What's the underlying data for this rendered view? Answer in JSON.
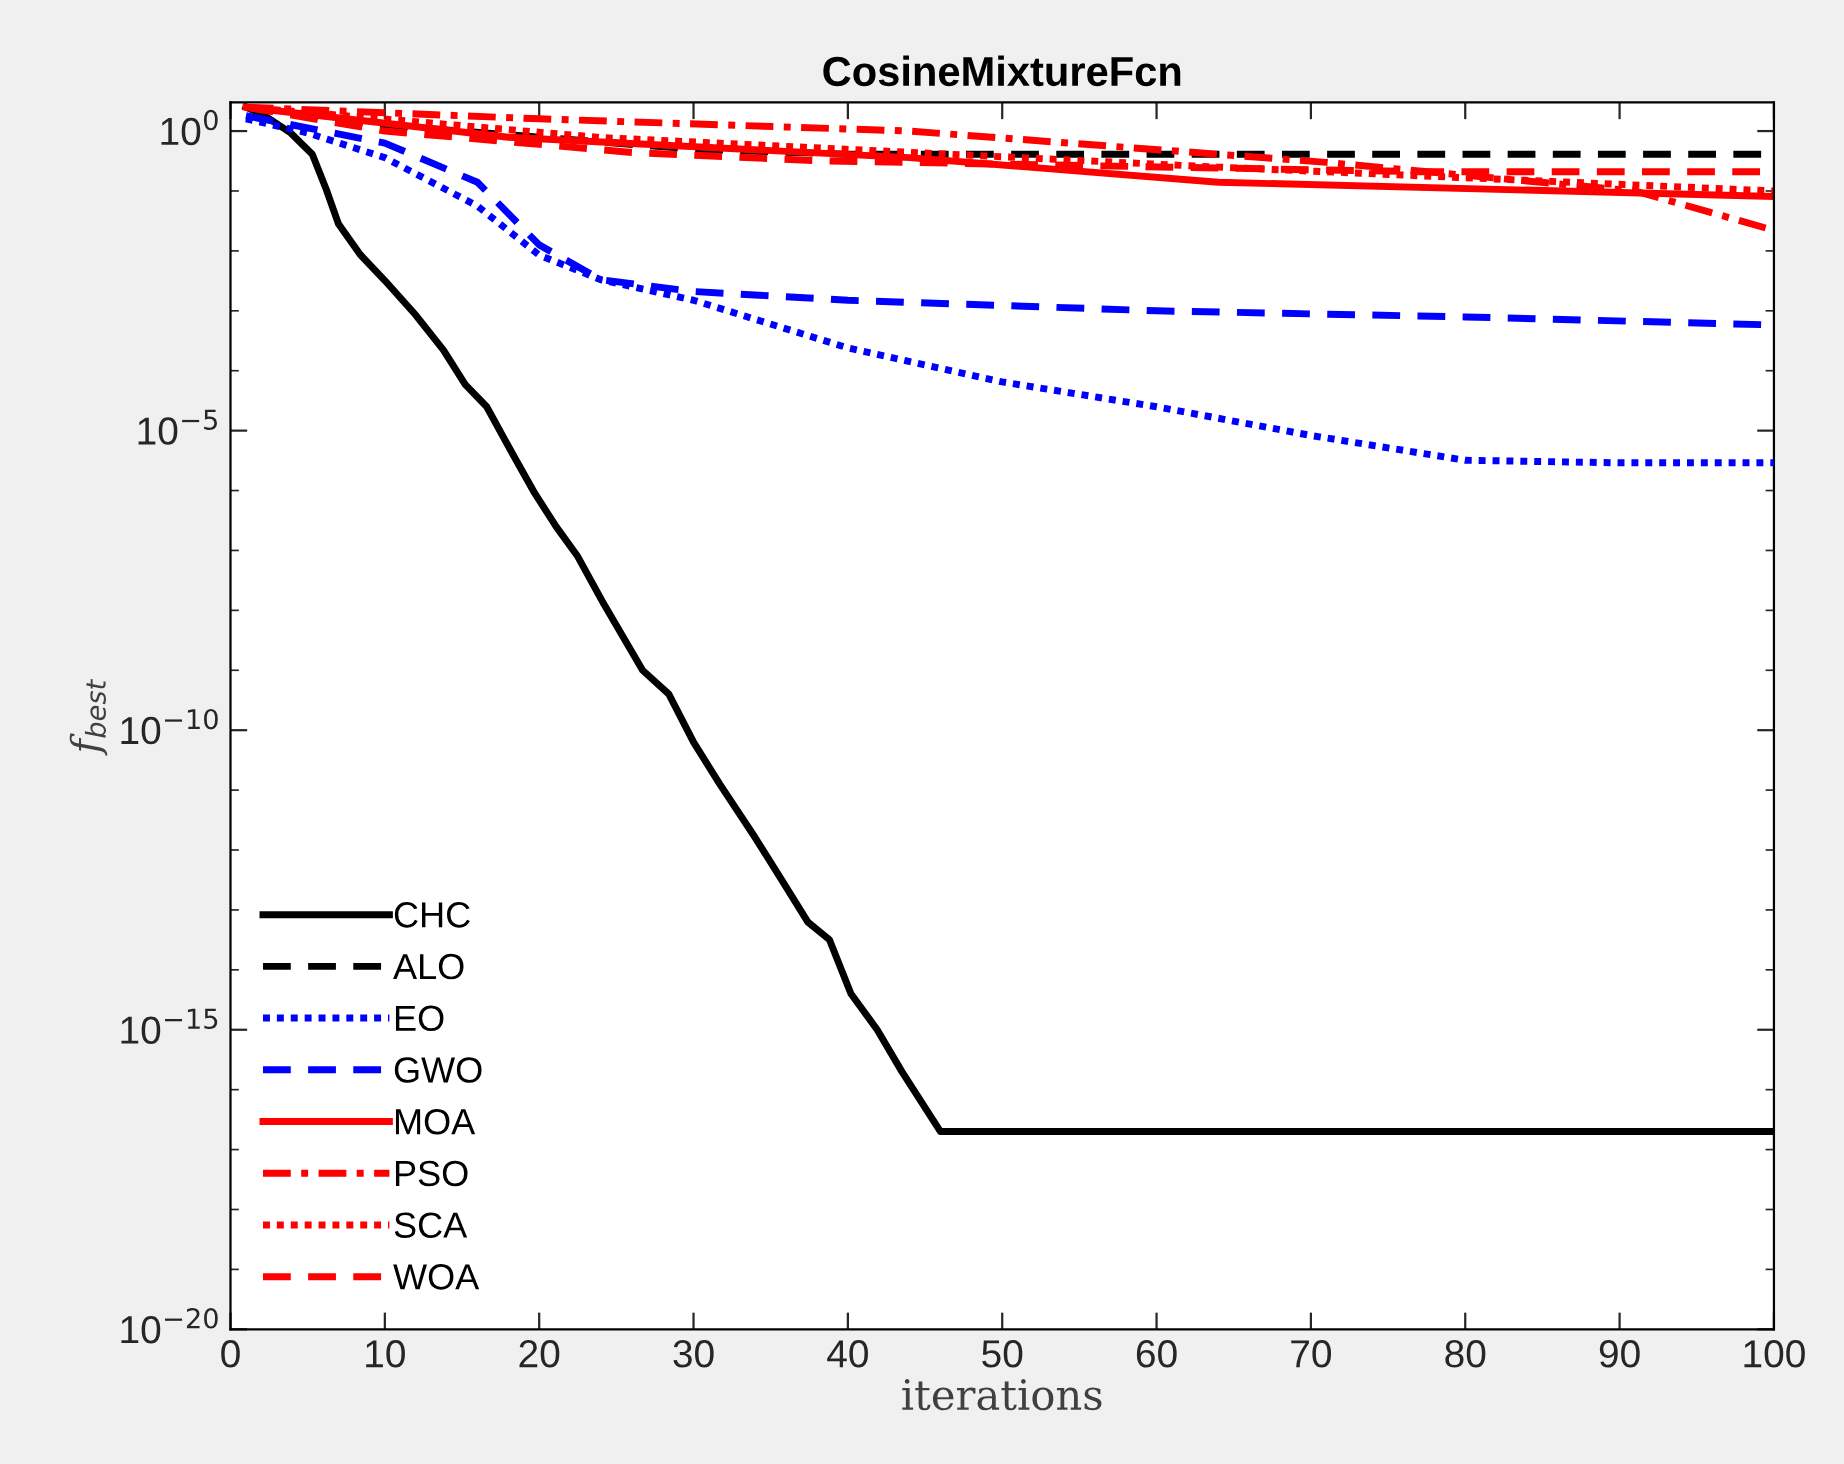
{
  "chart_data": {
    "type": "line",
    "title": "CosineMixtureFcn",
    "xlabel": "iterations",
    "ylabel": "f$_{best}$",
    "log": "y",
    "grid": false,
    "legend": "bottom left",
    "xlim": [
      0,
      100
    ],
    "xticks": [
      0,
      10,
      20,
      30,
      40,
      50,
      60,
      70,
      80,
      90,
      100
    ],
    "ylim": [
      1e-20,
      3
    ],
    "yticks": [
      {
        "value": 1e-20,
        "label": "10$^{−20}$"
      },
      {
        "value": 1e-15,
        "label": "10$^{−15}$"
      },
      {
        "value": 1e-10,
        "label": "10$^{−10}$"
      },
      {
        "value": 1e-05,
        "label": "10$^{−5}$"
      },
      {
        "value": 1,
        "label": "10$^{0}$"
      }
    ],
    "series": [
      {
        "name": "CHC",
        "color": "#000000",
        "line_style": "solid",
        "x": [
          1,
          2,
          3.9,
          5.3,
          6.2,
          7,
          8.4,
          10,
          12,
          13.8,
          15.2,
          16.6,
          18.3,
          19.7,
          21.1,
          22.5,
          24.2,
          26.7,
          28.4,
          30,
          31.7,
          34,
          35.7,
          37.4,
          38.8,
          40.2,
          41.9,
          43.5,
          46,
          100
        ],
        "values": [
          2.5,
          1.95,
          0.93,
          0.41,
          0.107,
          0.028,
          0.0087,
          0.0032,
          0.00085,
          0.00022,
          5.9e-05,
          2.5e-05,
          4e-06,
          9.1e-07,
          2.5e-07,
          7.9e-08,
          1.26e-08,
          1e-09,
          4e-10,
          6.3e-11,
          1.26e-11,
          1.6e-12,
          3.2e-13,
          6.3e-14,
          3.2e-14,
          4e-15,
          1e-15,
          2e-16,
          2e-17,
          2e-17
        ]
      },
      {
        "name": "ALO",
        "color": "#000000",
        "line_style": "dashed",
        "x": [
          1,
          10,
          20,
          30,
          40,
          100
        ],
        "values": [
          2.5,
          1.26,
          0.79,
          0.5,
          0.41,
          0.41
        ]
      },
      {
        "name": "EO",
        "color": "#0000ff",
        "line_style": "dotted",
        "x": [
          1,
          5,
          10,
          16,
          20,
          24,
          30,
          40,
          50,
          60,
          70,
          80,
          90,
          100
        ],
        "values": [
          1.6,
          0.93,
          0.36,
          0.056,
          0.0085,
          0.0033,
          0.0015,
          0.00024,
          6.5e-05,
          2.5e-05,
          8.3e-06,
          3.2e-06,
          2.9e-06,
          2.9e-06
        ]
      },
      {
        "name": "GWO",
        "color": "#0000ff",
        "line_style": "dashed",
        "x": [
          1,
          10,
          16,
          20,
          24,
          30,
          40,
          60,
          80,
          100
        ],
        "values": [
          1.8,
          0.63,
          0.14,
          0.0126,
          0.0033,
          0.0021,
          0.0015,
          0.001,
          0.00079,
          0.00058
        ]
      },
      {
        "name": "MOA",
        "color": "#ff0000",
        "line_style": "solid",
        "x": [
          1,
          18,
          44,
          64,
          100
        ],
        "values": [
          2.5,
          0.79,
          0.36,
          0.14,
          0.081
        ]
      },
      {
        "name": "PSO",
        "color": "#ff0000",
        "line_style": "dashdot",
        "x": [
          1,
          20,
          44,
          71,
          91,
          100
        ],
        "values": [
          2.5,
          1.6,
          1.0,
          0.3,
          0.1,
          0.022
        ]
      },
      {
        "name": "SCA",
        "color": "#ff0000",
        "line_style": "dotted",
        "x": [
          1,
          24,
          64,
          100
        ],
        "values": [
          2.5,
          0.78,
          0.25,
          0.1
        ]
      },
      {
        "name": "WOA",
        "color": "#ff0000",
        "line_style": "dashed",
        "x": [
          1,
          10,
          26,
          38,
          77,
          100
        ],
        "values": [
          2.5,
          1.0,
          0.44,
          0.32,
          0.21,
          0.21
        ]
      }
    ]
  }
}
